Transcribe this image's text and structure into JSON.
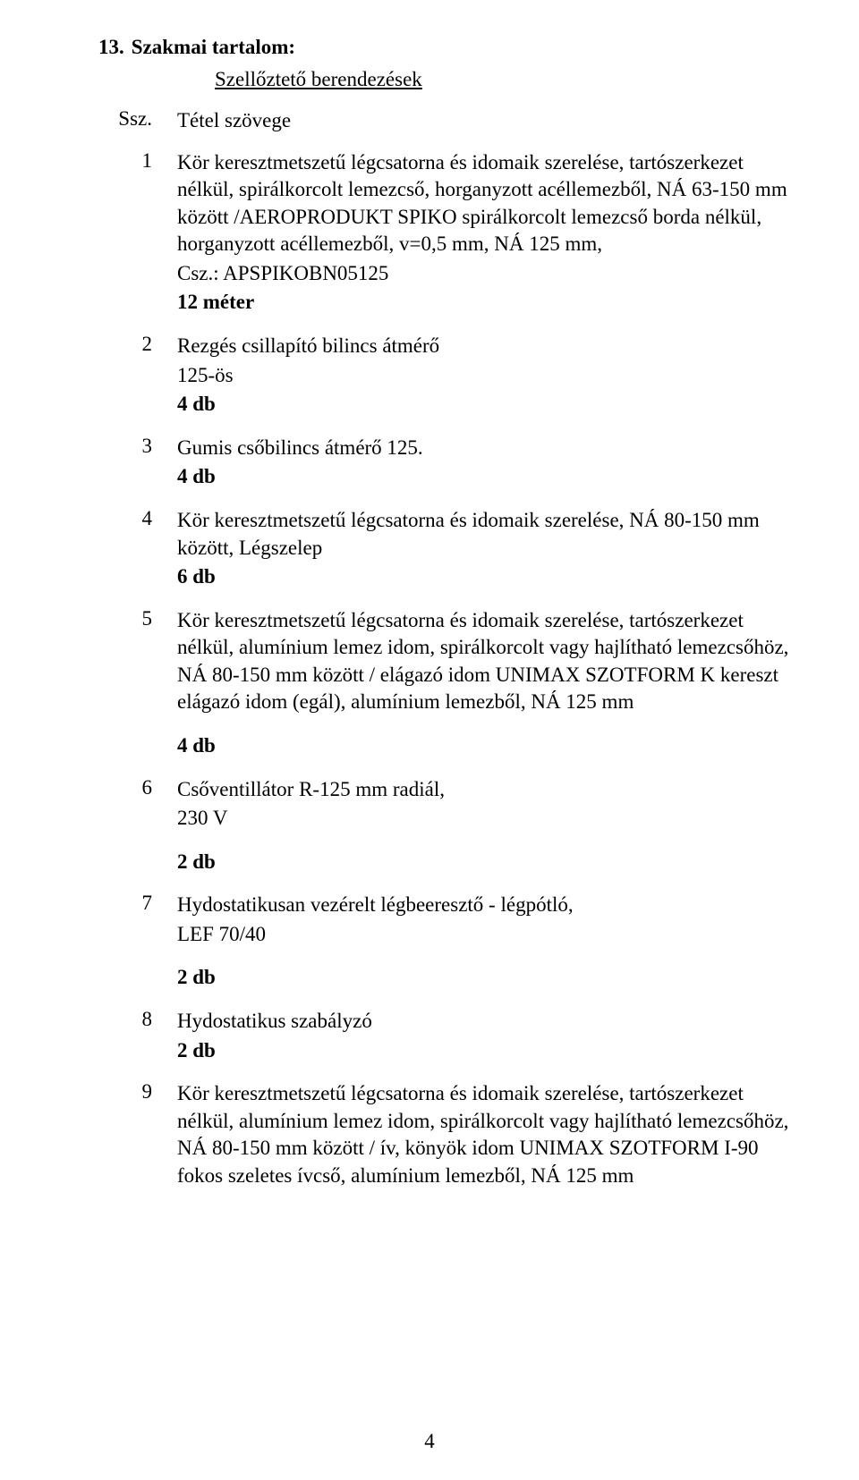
{
  "heading": {
    "number": "13.",
    "text": "Szakmai tartalom:"
  },
  "subtitle": "Szellőztető berendezések",
  "headers": {
    "ssz": "Ssz.",
    "tetel": "Tétel szövege"
  },
  "items": [
    {
      "n": "1",
      "desc": "Kör keresztmetszetű légcsatorna és idomaik szerelése,  tartószerkezet nélkül, spirálkorcolt lemezcső, horganyzott acéllemezből, NÁ 63-150 mm között /AEROPRODUKT SPIKO spirálkorcolt lemezcső borda nélkül, horganyzott acéllemezből, v=0,5 mm, NÁ 125 mm,",
      "extra": "Csz.: APSPIKOBN05125",
      "qty": "12 méter"
    },
    {
      "n": "2",
      "desc": "Rezgés csillapító bilincs átmérő\n125-ös",
      "qty": "4 db"
    },
    {
      "n": "3",
      "desc": "Gumis csőbilincs átmérő 125.",
      "qty": "4 db"
    },
    {
      "n": "4",
      "desc": "Kör keresztmetszetű légcsatorna és idomaik szerelése,  NÁ 80-150 mm között, Légszelep",
      "qty": "6 db"
    },
    {
      "n": "5",
      "desc": "Kör keresztmetszetű légcsatorna és idomaik szerelése,  tartószerkezet nélkül, alumínium lemez idom, spirálkorcolt vagy hajlítható lemezcsőhöz, NÁ 80-150 mm között / elágazó idom UNIMAX SZOTFORM K kereszt elágazó idom (egál), alumínium lemezből, NÁ 125 mm",
      "qty": "4 db",
      "qtygap": true
    },
    {
      "n": "6",
      "desc": "Csőventillátor R-125 mm radiál,\n230 V",
      "qty": "2 db",
      "qtygap": true
    },
    {
      "n": "7",
      "desc": "Hydostatikusan vezérelt légbeeresztő - légpótló,\nLEF 70/40",
      "qty": "2 db",
      "qtygap": true
    },
    {
      "n": "8",
      "desc": "Hydostatikus szabályzó",
      "qty": "2 db"
    },
    {
      "n": "9",
      "desc": "Kör keresztmetszetű légcsatorna és idomaik szerelése,  tartószerkezet nélkül, alumínium lemez idom, spirálkorcolt vagy hajlítható lemezcsőhöz, NÁ 80-150 mm között / ív, könyök idom UNIMAX SZOTFORM I-90 fokos szeletes ívcső, alumínium lemezből, NÁ 125 mm"
    }
  ],
  "page_number": "4"
}
